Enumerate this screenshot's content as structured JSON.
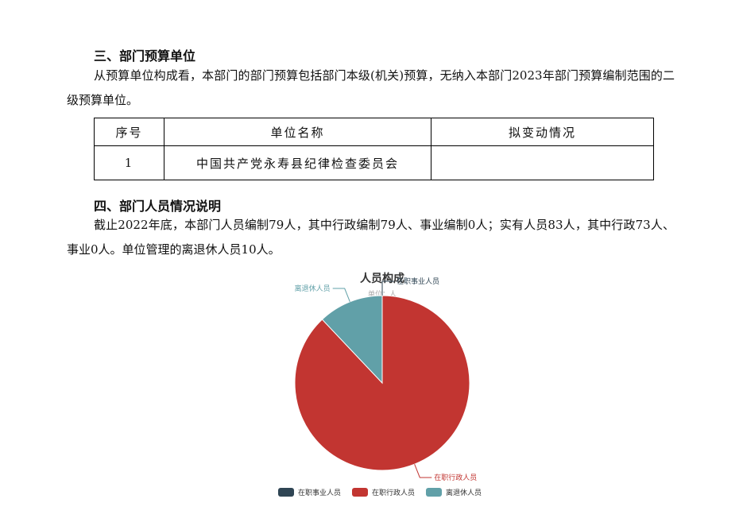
{
  "section3": {
    "heading": "三、部门预算单位",
    "text": "从预算单位构成看，本部门的部门预算包括部门本级(机关)预算，无纳入本部门2023年部门预算编制范围的二级预算单位。"
  },
  "table": {
    "headers": [
      "序号",
      "单位名称",
      "拟变动情况"
    ],
    "rows": [
      [
        "1",
        "中国共产党永寿县纪律检查委员会",
        ""
      ]
    ]
  },
  "section4": {
    "heading": "四、部门人员情况说明",
    "text": "截止2022年底，本部门人员编制79人，其中行政编制79人、事业编制0人；实有人员83人，其中行政73人、事业0人。单位管理的离退休人员10人。"
  },
  "chart_data": {
    "type": "pie",
    "title": "人员构成",
    "subtitle": "单位：人",
    "categories": [
      "在职事业人员",
      "在职行政人员",
      "离退休人员"
    ],
    "values": [
      0,
      73,
      10
    ],
    "colors": [
      "#2f4554",
      "#c23531",
      "#61a0a8"
    ],
    "legend": "bottom",
    "start_angle": "top",
    "direction": "clockwise"
  }
}
